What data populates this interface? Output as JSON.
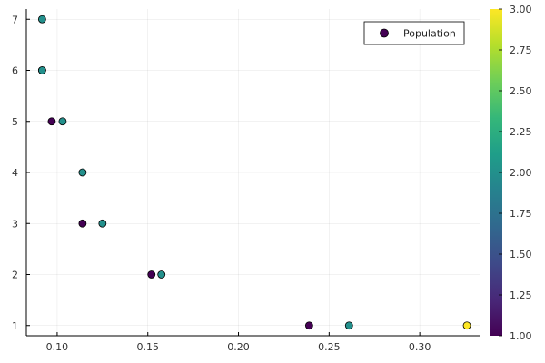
{
  "chart_data": {
    "type": "scatter",
    "title": "",
    "xlabel": "",
    "ylabel": "",
    "xlim": [
      0.083,
      0.333
    ],
    "ylim": [
      0.8,
      7.2
    ],
    "xticks": [
      0.1,
      0.15,
      0.2,
      0.25,
      0.3
    ],
    "xtick_labels": [
      "0.10",
      "0.15",
      "0.20",
      "0.25",
      "0.30"
    ],
    "yticks": [
      1,
      2,
      3,
      4,
      5,
      6,
      7
    ],
    "ytick_labels": [
      "1",
      "2",
      "3",
      "4",
      "5",
      "6",
      "7"
    ],
    "grid": true,
    "legend": {
      "position": "top-right",
      "entries": [
        "Population"
      ]
    },
    "series": [
      {
        "name": "Population",
        "points": [
          {
            "x": 0.0917,
            "y": 7,
            "c": 2
          },
          {
            "x": 0.0917,
            "y": 6,
            "c": 1
          },
          {
            "x": 0.0917,
            "y": 6,
            "c": 2
          },
          {
            "x": 0.097,
            "y": 5,
            "c": 1
          },
          {
            "x": 0.103,
            "y": 5,
            "c": 2
          },
          {
            "x": 0.114,
            "y": 4,
            "c": 2
          },
          {
            "x": 0.114,
            "y": 3,
            "c": 1
          },
          {
            "x": 0.125,
            "y": 3,
            "c": 2
          },
          {
            "x": 0.152,
            "y": 2,
            "c": 1
          },
          {
            "x": 0.1575,
            "y": 2,
            "c": 2
          },
          {
            "x": 0.239,
            "y": 1,
            "c": 1
          },
          {
            "x": 0.261,
            "y": 1,
            "c": 2
          },
          {
            "x": 0.326,
            "y": 1,
            "c": 3
          }
        ]
      }
    ],
    "colorbar": {
      "min": 1.0,
      "max": 3.0,
      "colormap": "viridis",
      "ticks": [
        1.0,
        1.25,
        1.5,
        1.75,
        2.0,
        2.25,
        2.5,
        2.75,
        3.0
      ],
      "tick_labels": [
        "1.00",
        "1.25",
        "1.50",
        "1.75",
        "2.00",
        "2.25",
        "2.50",
        "2.75",
        "3.00"
      ],
      "colors": [
        "#440154",
        "#482878",
        "#3e4a89",
        "#31688e",
        "#26828e",
        "#1f9e89",
        "#35b779",
        "#6ece58",
        "#b5de2b",
        "#fde725"
      ]
    }
  }
}
